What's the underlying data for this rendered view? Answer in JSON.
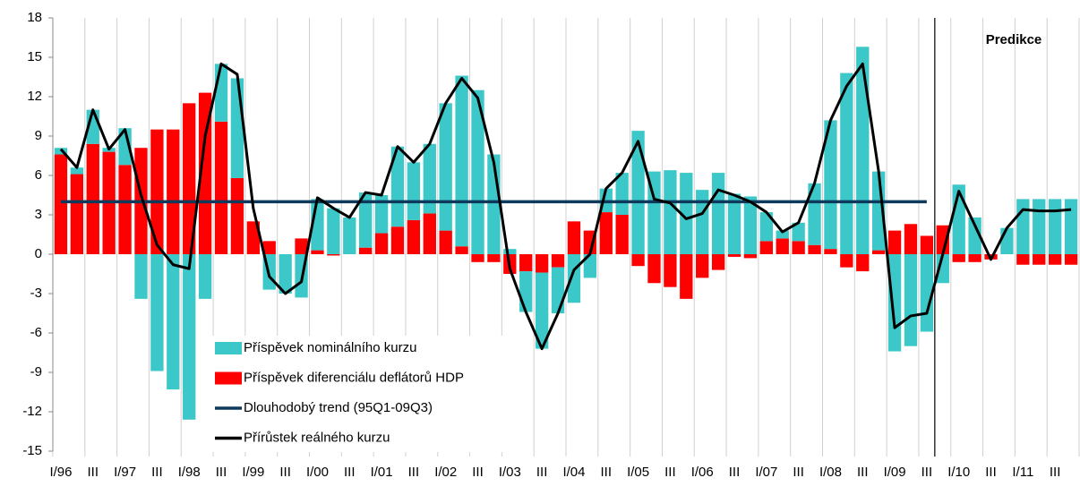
{
  "chart_data": {
    "type": "bar",
    "stacked": true,
    "categories": [
      "I/96",
      null,
      "III",
      null,
      "I/97",
      null,
      "III",
      null,
      "I/98",
      null,
      "III",
      null,
      "I/99",
      null,
      "III",
      null,
      "I/00",
      null,
      "III",
      null,
      "I/01",
      null,
      "III",
      null,
      "I/02",
      null,
      "III",
      null,
      "I/03",
      null,
      "III",
      null,
      "I/04",
      null,
      "III",
      null,
      "I/05",
      null,
      "III",
      null,
      "I/06",
      null,
      "III",
      null,
      "I/07",
      null,
      "III",
      null,
      "I/08",
      null,
      "III",
      null,
      "I/09",
      null,
      "III",
      null,
      "I/10",
      null,
      "III",
      null,
      "I/11",
      null,
      "III",
      null
    ],
    "series": [
      {
        "name": "Příspěvek nominálního kurzu",
        "type": "bar",
        "color": "#3cc8c8",
        "values": [
          0.5,
          0.5,
          2.6,
          0.3,
          2.8,
          -3.4,
          -8.9,
          -10.3,
          -12.6,
          -3.4,
          4.4,
          7.6,
          0,
          -2.7,
          -3.0,
          -3.3,
          3.9,
          3.5,
          2.8,
          4.2,
          2.9,
          6.1,
          4.4,
          5.3,
          9.7,
          13.0,
          12.5,
          7.6,
          0.4,
          -3.1,
          -5.8,
          -3.5,
          -3.7,
          -1.8,
          1.8,
          3.2,
          9.4,
          6.3,
          6.4,
          6.2,
          4.9,
          6.2,
          4.6,
          4.4,
          2.2,
          0.6,
          1.4,
          4.7,
          9.8,
          13.8,
          15.8,
          6.0,
          -7.4,
          -7.0,
          -5.9,
          -2.2,
          5.3,
          2.8,
          0,
          2.0,
          4.2,
          4.2,
          4.2,
          4.2
        ]
      },
      {
        "name": "Příspěvek diferenciálu deflátorů HDP",
        "type": "bar",
        "color": "#ff0000",
        "values": [
          7.6,
          6.1,
          8.4,
          7.8,
          6.8,
          8.1,
          9.5,
          9.5,
          11.5,
          12.3,
          10.1,
          5.8,
          2.5,
          1.0,
          0,
          1.2,
          0.3,
          -0.1,
          0,
          0.5,
          1.6,
          2.1,
          2.6,
          3.1,
          1.8,
          0.6,
          -0.6,
          -0.6,
          -1.5,
          -1.3,
          -1.4,
          -1.0,
          2.5,
          1.8,
          3.2,
          3.0,
          -0.9,
          -2.2,
          -2.5,
          -3.4,
          -1.8,
          -1.2,
          -0.2,
          -0.3,
          1.0,
          1.2,
          1.0,
          0.7,
          0.4,
          -1.0,
          -1.3,
          0.3,
          1.8,
          2.3,
          1.4,
          2.2,
          -0.6,
          -0.6,
          -0.4,
          0,
          -0.8,
          -0.8,
          -0.8,
          -0.8
        ]
      },
      {
        "name": "Dlouhodobý trend (95Q1-09Q3)",
        "type": "line",
        "color": "#0d3a5c",
        "values": [
          4,
          4,
          4,
          4,
          4,
          4,
          4,
          4,
          4,
          4,
          4,
          4,
          4,
          4,
          4,
          4,
          4,
          4,
          4,
          4,
          4,
          4,
          4,
          4,
          4,
          4,
          4,
          4,
          4,
          4,
          4,
          4,
          4,
          4,
          4,
          4,
          4,
          4,
          4,
          4,
          4,
          4,
          4,
          4,
          4,
          4,
          4,
          4,
          4,
          4,
          4,
          4,
          4,
          4,
          4,
          null,
          null,
          null,
          null,
          null,
          null,
          null,
          null,
          null
        ]
      },
      {
        "name": "Přírůstek reálného kurzu",
        "type": "line",
        "color": "#000000",
        "values": [
          8.0,
          6.6,
          11.0,
          8.0,
          9.5,
          4.5,
          0.7,
          -0.8,
          -1.1,
          9.0,
          14.5,
          13.7,
          3.5,
          -1.7,
          -3.0,
          -2.1,
          4.3,
          3.5,
          2.8,
          4.7,
          4.5,
          8.2,
          7.0,
          8.4,
          11.5,
          13.4,
          11.9,
          7.0,
          -1.1,
          -4.4,
          -7.2,
          -4.5,
          -1.2,
          0,
          5.0,
          6.2,
          8.6,
          4.2,
          3.9,
          2.7,
          3.1,
          4.9,
          4.5,
          4.0,
          3.2,
          1.7,
          2.4,
          5.4,
          10.2,
          12.8,
          14.5,
          6.3,
          -5.6,
          -4.7,
          -4.5,
          0,
          4.8,
          2.2,
          -0.4,
          2.0,
          3.4,
          3.3,
          3.3,
          3.4
        ]
      }
    ],
    "annotation": "Predikce",
    "ylim": [
      -15,
      18
    ],
    "yticks": [
      -15,
      -12,
      -9,
      -6,
      -3,
      0,
      3,
      6,
      9,
      12,
      15,
      18
    ],
    "legend": "bottom-left"
  }
}
